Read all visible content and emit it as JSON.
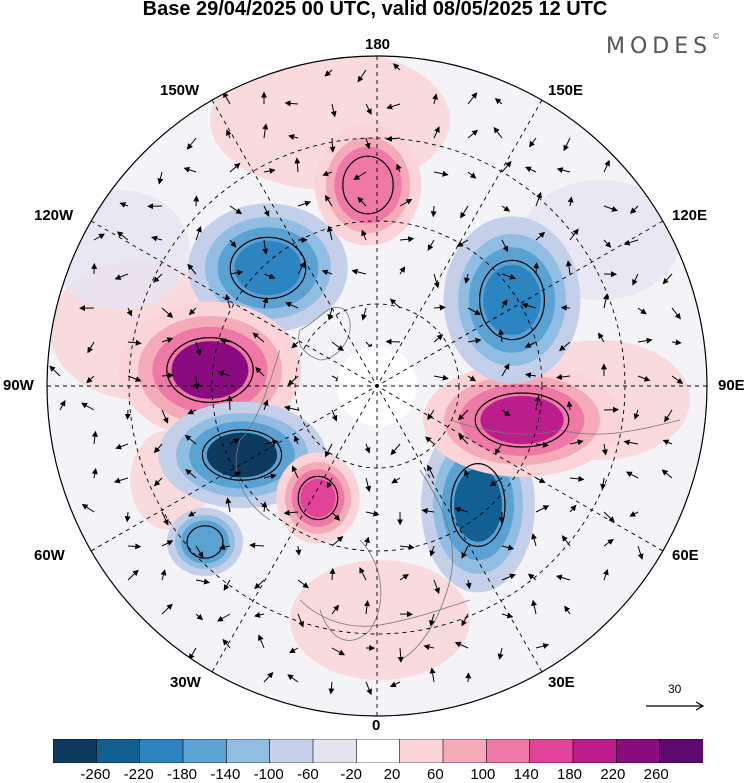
{
  "title": "Base 29/04/2025 00 UTC, valid 08/05/2025 12 UTC",
  "brand": "MODES",
  "brand_mark": "©",
  "longitude_labels": {
    "n180": "180",
    "w150": "150W",
    "e150": "150E",
    "w120": "120W",
    "e120": "120E",
    "w90": "90W",
    "e90": "90E",
    "w60": "60W",
    "e60": "60E",
    "w30": "30W",
    "e30": "30E",
    "s0": "0"
  },
  "reference_vector": "30",
  "colorbar": {
    "ticks": [
      "-260",
      "-220",
      "-180",
      "-140",
      "-100",
      "-60",
      "-20",
      "20",
      "60",
      "100",
      "140",
      "180",
      "220",
      "260"
    ],
    "colors": [
      "#0d3a5e",
      "#125f91",
      "#2c84c0",
      "#5aa2d2",
      "#92bde3",
      "#c4cfe9",
      "#e6e3f1",
      "#ffffff",
      "#fad4d7",
      "#f5aab7",
      "#ee78a6",
      "#e04398",
      "#bb1d8a",
      "#8a0b80",
      "#5c086f"
    ]
  },
  "anomaly_centers": [
    {
      "name": "negative-anomaly-alaska",
      "value": -220,
      "color": "#2c84c0"
    },
    {
      "name": "positive-anomaly-canada",
      "value": 240,
      "color": "#8a0b80"
    },
    {
      "name": "negative-anomaly-atlantic",
      "value": -260,
      "color": "#0d3a5e"
    },
    {
      "name": "positive-anomaly-north-atlantic",
      "value": 160,
      "color": "#e04398"
    },
    {
      "name": "negative-anomaly-europe",
      "value": -220,
      "color": "#125f91"
    },
    {
      "name": "positive-anomaly-siberia",
      "value": 200,
      "color": "#bb1d8a"
    },
    {
      "name": "negative-anomaly-east-asia",
      "value": -180,
      "color": "#2c84c0"
    },
    {
      "name": "positive-anomaly-pacific",
      "value": 140,
      "color": "#ee78a6"
    },
    {
      "name": "negative-anomaly-midatlantic",
      "value": -140,
      "color": "#5aa2d2"
    }
  ]
}
